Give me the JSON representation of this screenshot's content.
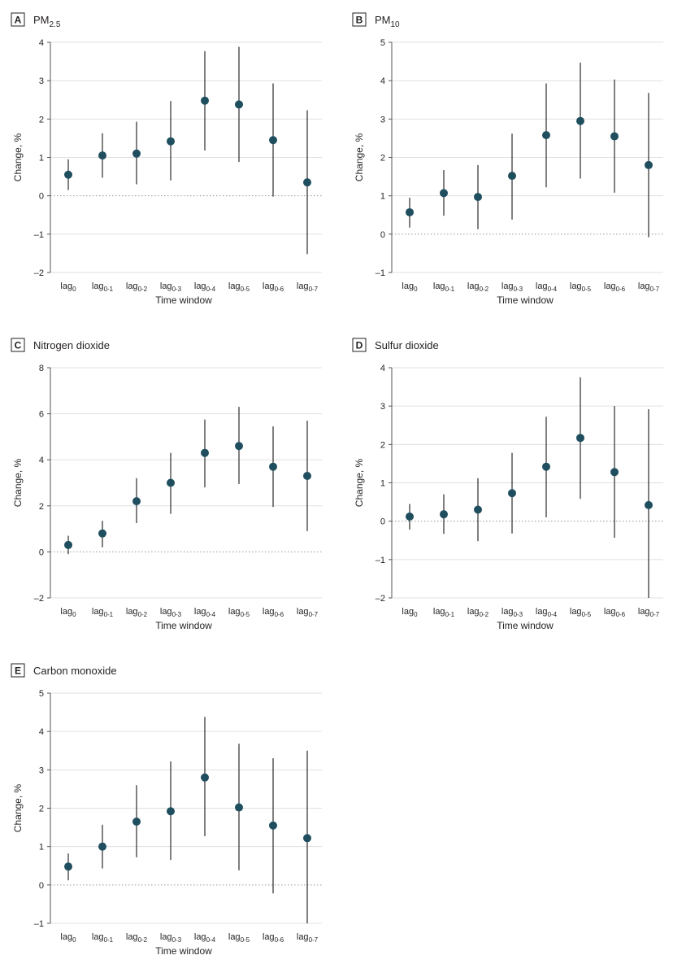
{
  "chart_data": [
    {
      "type": "scatter",
      "panel_label": "A",
      "title_main": "PM",
      "title_sub": "2.5",
      "xlabel": "Time window",
      "ylabel": "Change, %",
      "ylim": [
        -2,
        4
      ],
      "yticks": [
        -2,
        -1,
        0,
        1,
        2,
        3,
        4
      ],
      "ytick_labels": [
        "–2",
        "–1",
        "0",
        "1",
        "2",
        "3",
        "4"
      ],
      "reference_line": 0,
      "categories": [
        {
          "base": "lag",
          "sub": "0"
        },
        {
          "base": "lag",
          "sub": "0-1"
        },
        {
          "base": "lag",
          "sub": "0-2"
        },
        {
          "base": "lag",
          "sub": "0-3"
        },
        {
          "base": "lag",
          "sub": "0-4"
        },
        {
          "base": "lag",
          "sub": "0-5"
        },
        {
          "base": "lag",
          "sub": "0-6"
        },
        {
          "base": "lag",
          "sub": "0-7"
        }
      ],
      "values": [
        0.55,
        1.05,
        1.1,
        1.42,
        2.48,
        2.38,
        1.45,
        0.35
      ],
      "lower": [
        0.15,
        0.47,
        0.3,
        0.4,
        1.18,
        0.88,
        -0.02,
        -1.52
      ],
      "upper": [
        0.95,
        1.63,
        1.93,
        2.47,
        3.77,
        3.88,
        2.93,
        2.23
      ]
    },
    {
      "type": "scatter",
      "panel_label": "B",
      "title_main": "PM",
      "title_sub": "10",
      "xlabel": "Time window",
      "ylabel": "Change, %",
      "ylim": [
        -1,
        5
      ],
      "yticks": [
        -1,
        0,
        1,
        2,
        3,
        4,
        5
      ],
      "ytick_labels": [
        "–1",
        "0",
        "1",
        "2",
        "3",
        "4",
        "5"
      ],
      "reference_line": 0,
      "categories": [
        {
          "base": "lag",
          "sub": "0"
        },
        {
          "base": "lag",
          "sub": "0-1"
        },
        {
          "base": "lag",
          "sub": "0-2"
        },
        {
          "base": "lag",
          "sub": "0-3"
        },
        {
          "base": "lag",
          "sub": "0-4"
        },
        {
          "base": "lag",
          "sub": "0-5"
        },
        {
          "base": "lag",
          "sub": "0-6"
        },
        {
          "base": "lag",
          "sub": "0-7"
        }
      ],
      "values": [
        0.57,
        1.07,
        0.97,
        1.52,
        2.58,
        2.95,
        2.55,
        1.8
      ],
      "lower": [
        0.17,
        0.48,
        0.13,
        0.38,
        1.22,
        1.45,
        1.08,
        -0.08
      ],
      "upper": [
        0.95,
        1.67,
        1.8,
        2.62,
        3.93,
        4.47,
        4.03,
        3.68
      ]
    },
    {
      "type": "scatter",
      "panel_label": "C",
      "title_main": "Nitrogen dioxide",
      "title_sub": "",
      "xlabel": "Time window",
      "ylabel": "Change, %",
      "ylim": [
        -2,
        8
      ],
      "yticks": [
        -2,
        0,
        2,
        4,
        6,
        8
      ],
      "ytick_labels": [
        "–2",
        "0",
        "2",
        "4",
        "6",
        "8"
      ],
      "reference_line": 0,
      "categories": [
        {
          "base": "lag",
          "sub": "0"
        },
        {
          "base": "lag",
          "sub": "0-1"
        },
        {
          "base": "lag",
          "sub": "0-2"
        },
        {
          "base": "lag",
          "sub": "0-3"
        },
        {
          "base": "lag",
          "sub": "0-4"
        },
        {
          "base": "lag",
          "sub": "0-5"
        },
        {
          "base": "lag",
          "sub": "0-6"
        },
        {
          "base": "lag",
          "sub": "0-7"
        }
      ],
      "values": [
        0.3,
        0.8,
        2.2,
        3.0,
        4.3,
        4.6,
        3.7,
        3.3
      ],
      "lower": [
        -0.1,
        0.2,
        1.25,
        1.65,
        2.8,
        2.95,
        1.95,
        0.9
      ],
      "upper": [
        0.7,
        1.35,
        3.2,
        4.3,
        5.75,
        6.3,
        5.45,
        5.7
      ]
    },
    {
      "type": "scatter",
      "panel_label": "D",
      "title_main": "Sulfur dioxide",
      "title_sub": "",
      "xlabel": "Time window",
      "ylabel": "Change, %",
      "ylim": [
        -2,
        4
      ],
      "yticks": [
        -2,
        -1,
        0,
        1,
        2,
        3,
        4
      ],
      "ytick_labels": [
        "–2",
        "–1",
        "0",
        "1",
        "2",
        "3",
        "4"
      ],
      "reference_line": 0,
      "categories": [
        {
          "base": "lag",
          "sub": "0"
        },
        {
          "base": "lag",
          "sub": "0-1"
        },
        {
          "base": "lag",
          "sub": "0-2"
        },
        {
          "base": "lag",
          "sub": "0-3"
        },
        {
          "base": "lag",
          "sub": "0-4"
        },
        {
          "base": "lag",
          "sub": "0-5"
        },
        {
          "base": "lag",
          "sub": "0-6"
        },
        {
          "base": "lag",
          "sub": "0-7"
        }
      ],
      "values": [
        0.12,
        0.18,
        0.3,
        0.73,
        1.42,
        2.17,
        1.28,
        0.42
      ],
      "lower": [
        -0.22,
        -0.33,
        -0.52,
        -0.32,
        0.1,
        0.58,
        -0.43,
        -2.0
      ],
      "upper": [
        0.45,
        0.7,
        1.12,
        1.78,
        2.72,
        3.75,
        3.0,
        2.92
      ]
    },
    {
      "type": "scatter",
      "panel_label": "E",
      "title_main": "Carbon monoxide",
      "title_sub": "",
      "xlabel": "Time window",
      "ylabel": "Change, %",
      "ylim": [
        -1,
        5
      ],
      "yticks": [
        -1,
        0,
        1,
        2,
        3,
        4,
        5
      ],
      "ytick_labels": [
        "–1",
        "0",
        "1",
        "2",
        "3",
        "4",
        "5"
      ],
      "reference_line": 0,
      "categories": [
        {
          "base": "lag",
          "sub": "0"
        },
        {
          "base": "lag",
          "sub": "0-1"
        },
        {
          "base": "lag",
          "sub": "0-2"
        },
        {
          "base": "lag",
          "sub": "0-3"
        },
        {
          "base": "lag",
          "sub": "0-4"
        },
        {
          "base": "lag",
          "sub": "0-5"
        },
        {
          "base": "lag",
          "sub": "0-6"
        },
        {
          "base": "lag",
          "sub": "0-7"
        }
      ],
      "values": [
        0.48,
        1.0,
        1.65,
        1.92,
        2.8,
        2.02,
        1.55,
        1.22
      ],
      "lower": [
        0.12,
        0.43,
        0.72,
        0.65,
        1.27,
        0.38,
        -0.22,
        -1.0
      ],
      "upper": [
        0.82,
        1.57,
        2.6,
        3.22,
        4.38,
        3.68,
        3.3,
        3.5
      ]
    }
  ],
  "colors": {
    "point": "#1f4e5f",
    "errorbar": "#2b2b2b",
    "gridline": "#e0e0e0",
    "axis": "#555555",
    "reference_line": "#999999"
  }
}
